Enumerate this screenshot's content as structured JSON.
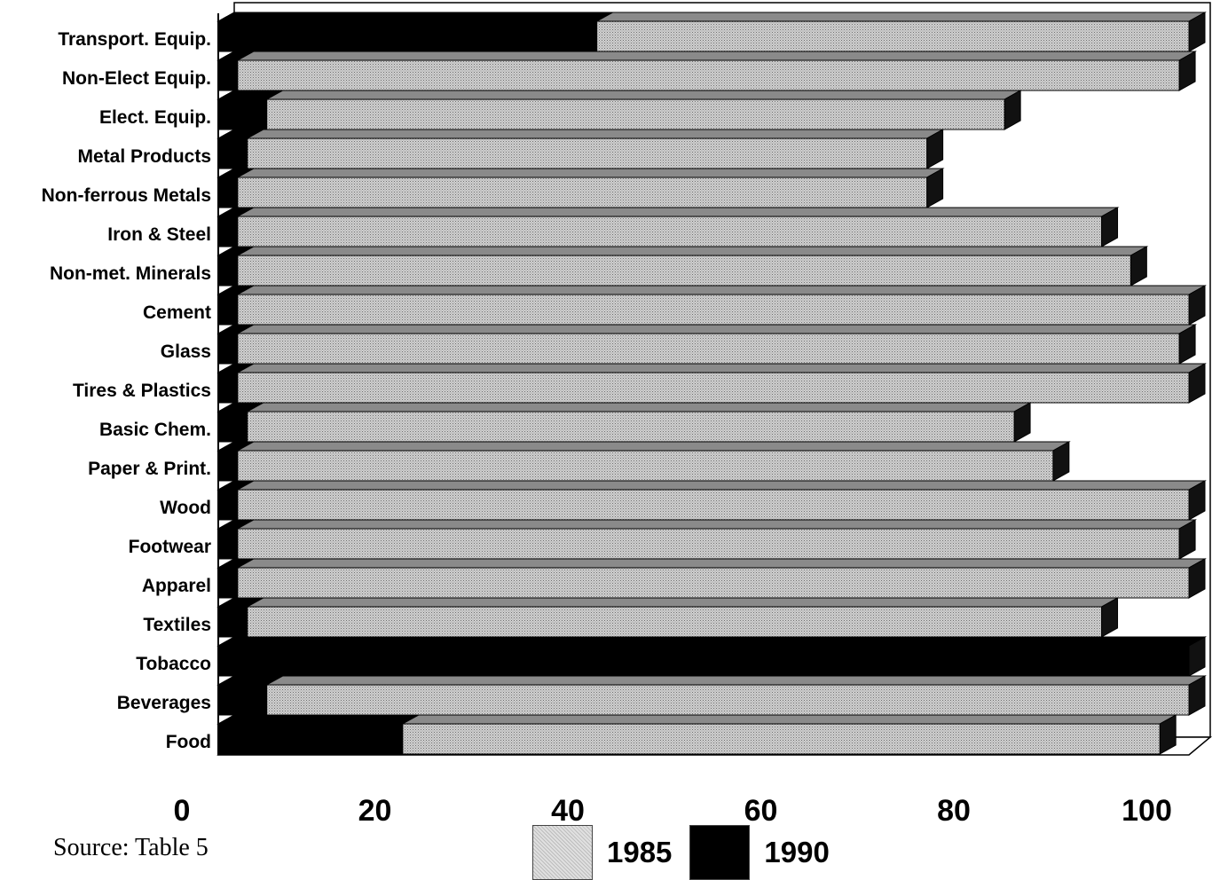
{
  "chart_data": {
    "type": "bar",
    "orientation": "horizontal",
    "categories": [
      "Transport. Equip.",
      "Non-Elect Equip.",
      "Elect. Equip.",
      "Metal Products",
      "Non-ferrous Metals",
      "Iron & Steel",
      "Non-met. Minerals",
      "Cement",
      "Glass",
      "Tires & Plastics",
      "Basic Chem.",
      "Paper & Print.",
      "Wood",
      "Footwear",
      "Apparel",
      "Textiles",
      "Tobacco",
      "Beverages",
      "Food"
    ],
    "series": [
      {
        "name": "1985",
        "color": "#c8c8c8",
        "values": [
          100,
          99,
          81,
          73,
          73,
          91,
          94,
          100,
          99,
          100,
          82,
          86,
          100,
          99,
          100,
          91,
          100,
          100,
          97
        ]
      },
      {
        "name": "1990",
        "color": "#000000",
        "values": [
          39,
          2,
          5,
          3,
          2,
          2,
          2,
          2,
          2,
          2,
          3,
          2,
          2,
          2,
          2,
          3,
          100,
          5,
          19
        ]
      }
    ],
    "xlim": [
      0,
      100
    ],
    "xticks": [
      "0",
      "20",
      "40",
      "60",
      "80",
      "100"
    ],
    "xlabel": "",
    "ylabel": "",
    "title": "",
    "grid": false,
    "legend_placement": "bottom"
  },
  "footer": {
    "source": "Source: Table 5"
  },
  "legend": {
    "items": [
      {
        "label": "1985",
        "swatch": "dotted-gray"
      },
      {
        "label": "1990",
        "swatch": "solid-black"
      }
    ]
  }
}
